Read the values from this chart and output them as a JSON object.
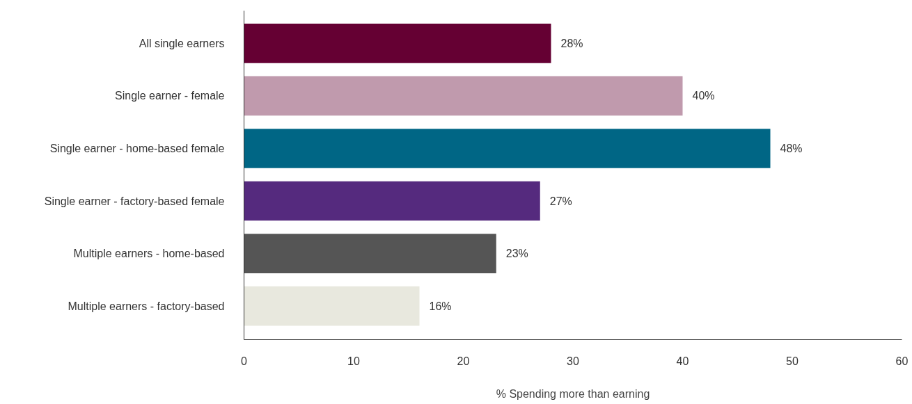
{
  "chart_data": {
    "type": "bar",
    "orientation": "horizontal",
    "xlabel": "% Spending more than earning",
    "categories": [
      "All single earners",
      "Single earner - female",
      "Single earner - home-based female",
      "Single earner - factory-based female",
      "Multiple earners - home-based",
      "Multiple earners - factory-based"
    ],
    "values": [
      28,
      40,
      48,
      27,
      23,
      16
    ],
    "colors": [
      "#650033",
      "#c09aad",
      "#006685",
      "#552a7e",
      "#555555",
      "#e8e8de"
    ],
    "value_labels": [
      "28%",
      "40%",
      "48%",
      "27%",
      "23%",
      "16%"
    ],
    "xlim": [
      0,
      60
    ],
    "xticks": [
      0,
      10,
      20,
      30,
      40,
      50,
      60
    ],
    "grid": false
  }
}
